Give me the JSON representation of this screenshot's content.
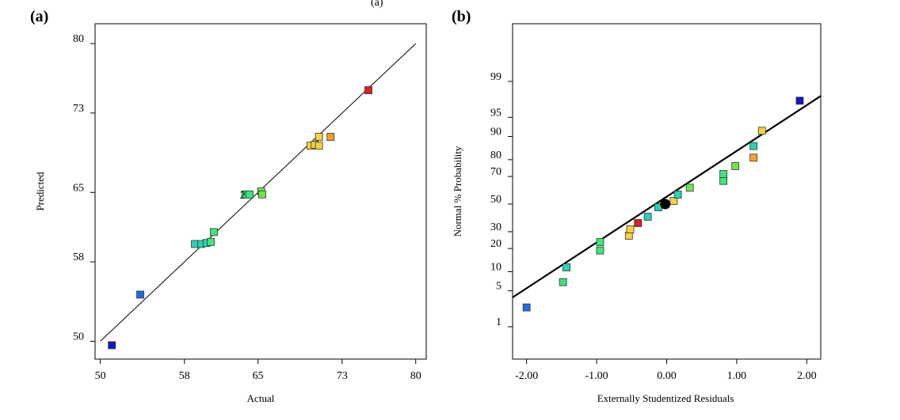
{
  "chart_data": [
    {
      "panel_label": "(a)",
      "header_fragment": "(a)",
      "type": "scatter",
      "title": "",
      "xlabel": "Actual",
      "ylabel": "Predicted",
      "xlim": [
        49.5,
        81
      ],
      "ylim": [
        48.2,
        82
      ],
      "xticks": [
        {
          "value": 50,
          "label": "50"
        },
        {
          "value": 58,
          "label": "58"
        },
        {
          "value": 65,
          "label": "65"
        },
        {
          "value": 73,
          "label": "73"
        },
        {
          "value": 80,
          "label": "80"
        }
      ],
      "yticks": [
        {
          "value": 50,
          "label": "50"
        },
        {
          "value": 58,
          "label": "58"
        },
        {
          "value": 65,
          "label": "65"
        },
        {
          "value": 73,
          "label": "73"
        },
        {
          "value": 80,
          "label": "80"
        }
      ],
      "reference_line": {
        "from": [
          50,
          50
        ],
        "to": [
          80,
          80
        ]
      },
      "points": [
        {
          "x": 51.1,
          "y": 49.6,
          "color": "#1414c8"
        },
        {
          "x": 53.8,
          "y": 54.7,
          "color": "#1e6ee6"
        },
        {
          "x": 59.0,
          "y": 59.8,
          "color": "#28d2b4"
        },
        {
          "x": 59.6,
          "y": 59.8,
          "color": "#28d2b4"
        },
        {
          "x": 60.1,
          "y": 59.9,
          "color": "#28d2b4"
        },
        {
          "x": 60.5,
          "y": 60.0,
          "color": "#3ce678"
        },
        {
          "x": 60.8,
          "y": 61.0,
          "color": "#3ce678"
        },
        {
          "x": 63.8,
          "y": 64.8,
          "color": "#3ce678"
        },
        {
          "x": 64.2,
          "y": 64.8,
          "color": "#3ce678"
        },
        {
          "x": 65.3,
          "y": 65.1,
          "color": "#6ee646"
        },
        {
          "x": 65.4,
          "y": 64.8,
          "color": "#6ee646"
        },
        {
          "x": 70.0,
          "y": 69.7,
          "color": "#f5d23c"
        },
        {
          "x": 70.4,
          "y": 69.8,
          "color": "#f5d23c"
        },
        {
          "x": 70.8,
          "y": 69.7,
          "color": "#f5d23c"
        },
        {
          "x": 70.8,
          "y": 70.6,
          "color": "#f5d23c"
        },
        {
          "x": 71.9,
          "y": 70.6,
          "color": "#f5a028"
        },
        {
          "x": 75.5,
          "y": 75.3,
          "color": "#dc1e1e"
        }
      ],
      "annotations": [
        {
          "text": "2",
          "x": 63.2,
          "y": 64.8
        }
      ]
    },
    {
      "panel_label": "(b)",
      "type": "scatter",
      "title": "",
      "xlabel": "Externally Studentized Residuals",
      "ylabel": "Normal % Probability",
      "xlim": [
        -2.2,
        2.2
      ],
      "ylim": [
        -2.94,
        3.42
      ],
      "ytick_z_values": [
        -2.326,
        -1.645,
        -1.282,
        -0.842,
        -0.524,
        0,
        0.524,
        0.842,
        1.282,
        1.645,
        2.326
      ],
      "xticks": [
        {
          "value": -2.0,
          "label": "-2.00"
        },
        {
          "value": -1.0,
          "label": "-1.00"
        },
        {
          "value": 0.0,
          "label": "0.00"
        },
        {
          "value": 1.0,
          "label": "1.00"
        },
        {
          "value": 2.0,
          "label": "2.00"
        }
      ],
      "yticks": [
        {
          "value": 1,
          "label": "1"
        },
        {
          "value": 5,
          "label": "5"
        },
        {
          "value": 10,
          "label": "10"
        },
        {
          "value": 20,
          "label": "20"
        },
        {
          "value": 30,
          "label": "30"
        },
        {
          "value": 50,
          "label": "50"
        },
        {
          "value": 70,
          "label": "70"
        },
        {
          "value": 80,
          "label": "80"
        },
        {
          "value": 90,
          "label": "90"
        },
        {
          "value": 95,
          "label": "95"
        },
        {
          "value": 99,
          "label": "99"
        }
      ],
      "fit_line": {
        "from": [
          -2.2,
          -1.77
        ],
        "to": [
          2.2,
          2.05
        ]
      },
      "points": [
        {
          "x": -2.0,
          "z": -1.96,
          "color": "#1e6ee6"
        },
        {
          "x": -1.48,
          "z": -1.48,
          "color": "#3ce678"
        },
        {
          "x": -1.43,
          "z": -1.2,
          "color": "#28d2b4"
        },
        {
          "x": -0.95,
          "z": -0.88,
          "color": "#3ce678"
        },
        {
          "x": -0.95,
          "z": -0.72,
          "color": "#3ce678"
        },
        {
          "x": -0.54,
          "z": -0.6,
          "color": "#f5d23c"
        },
        {
          "x": -0.52,
          "z": -0.48,
          "color": "#f5d23c"
        },
        {
          "x": -0.41,
          "z": -0.36,
          "color": "#dc1e1e"
        },
        {
          "x": -0.27,
          "z": -0.24,
          "color": "#28d2b4"
        },
        {
          "x": -0.12,
          "z": -0.06,
          "color": "#28d2b4"
        },
        {
          "x": 0.1,
          "z": 0.06,
          "color": "#f5d23c"
        },
        {
          "x": 0.16,
          "z": 0.18,
          "color": "#28d2b4"
        },
        {
          "x": 0.33,
          "z": 0.31,
          "color": "#6ee646"
        },
        {
          "x": 0.81,
          "z": 0.44,
          "color": "#3ce678"
        },
        {
          "x": 0.81,
          "z": 0.57,
          "color": "#3ce678"
        },
        {
          "x": 0.98,
          "z": 0.72,
          "color": "#6ee646"
        },
        {
          "x": 1.24,
          "z": 0.88,
          "color": "#f5a028"
        },
        {
          "x": 1.24,
          "z": 1.1,
          "color": "#28d2b4"
        },
        {
          "x": 1.36,
          "z": 1.39,
          "color": "#f5d23c"
        },
        {
          "x": 1.9,
          "z": 1.96,
          "color": "#1414c8"
        }
      ],
      "center_marker": {
        "x": -0.02,
        "z": 0.0,
        "color": "#000000"
      }
    }
  ]
}
